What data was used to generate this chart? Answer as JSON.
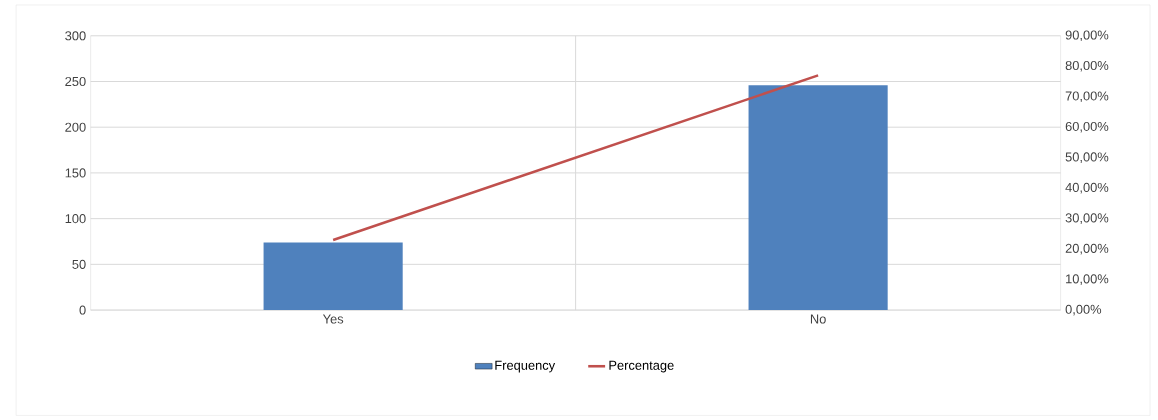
{
  "chart_data": {
    "type": "bar",
    "categories": [
      "Yes",
      "No"
    ],
    "series": [
      {
        "name": "Frequency",
        "color": "#4f81bd",
        "values": [
          74,
          246
        ]
      },
      {
        "name": "Percentage",
        "type": "line",
        "axis": "y2",
        "color": "#c0504d",
        "values": [
          23,
          77
        ]
      }
    ],
    "ylim": [
      0,
      300
    ],
    "yticks": [
      0,
      50,
      100,
      150,
      200,
      250,
      300
    ],
    "y2lim": [
      0,
      90
    ],
    "y2ticks": [
      {
        "value": 0,
        "label": "0,00%"
      },
      {
        "value": 10,
        "label": "10,00%"
      },
      {
        "value": 20,
        "label": "20,00%"
      },
      {
        "value": 30,
        "label": "30,00%"
      },
      {
        "value": 40,
        "label": "40,00%"
      },
      {
        "value": 50,
        "label": "50,00%"
      },
      {
        "value": 60,
        "label": "60,00%"
      },
      {
        "value": 70,
        "label": "70,00%"
      },
      {
        "value": 80,
        "label": "80,00%"
      },
      {
        "value": 90,
        "label": "90,00%"
      }
    ],
    "grid": true,
    "legend": "bottom"
  }
}
